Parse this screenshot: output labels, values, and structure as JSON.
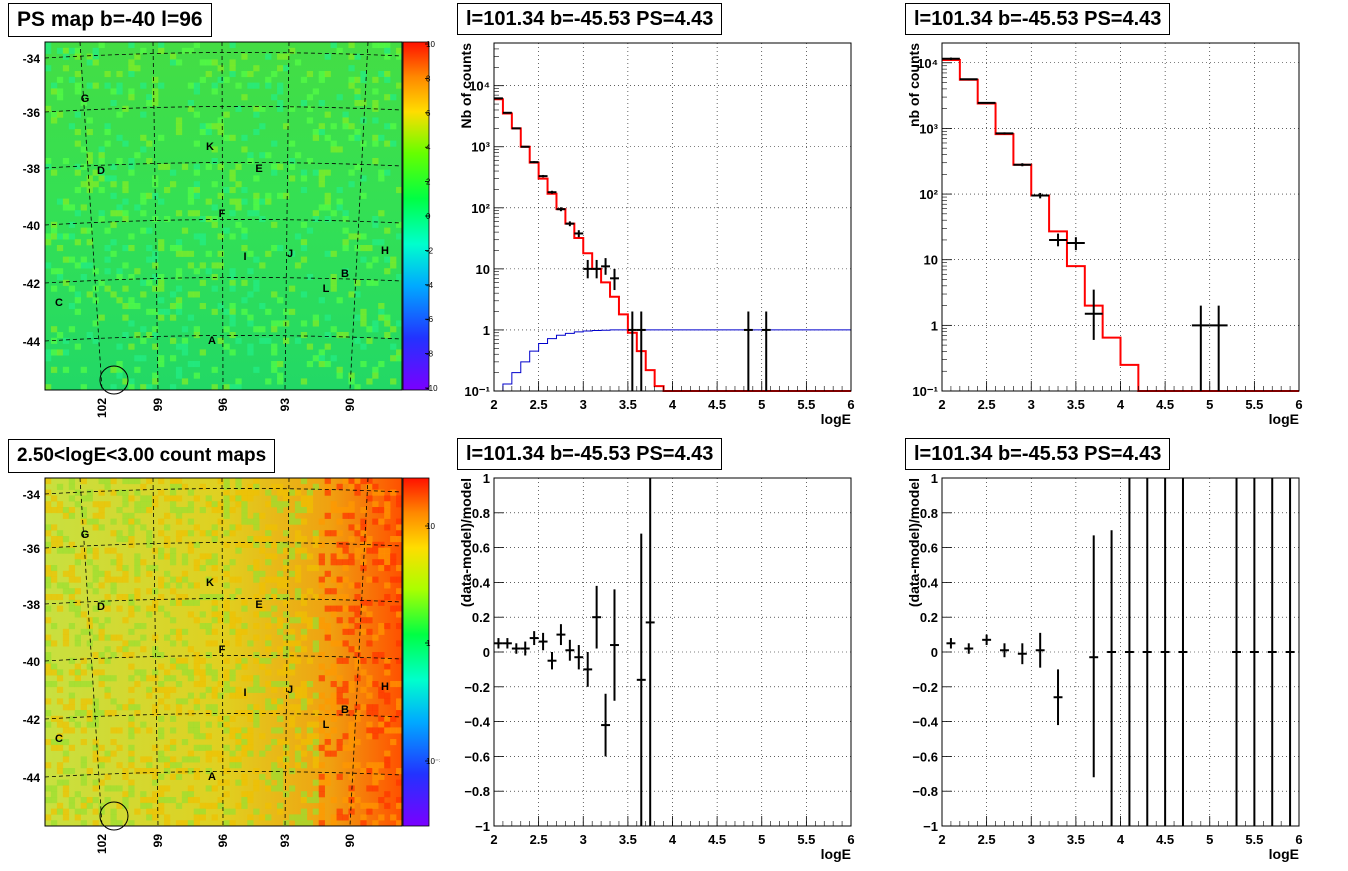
{
  "panels": {
    "ps_map": {
      "title": "PS map b=-40 l=96",
      "y_ticks": [
        "-34",
        "-36",
        "-38",
        "-40",
        "-42",
        "-44"
      ],
      "x_ticks": [
        "102",
        "99",
        "96",
        "93",
        "90"
      ],
      "colorbar_ticks": [
        "10",
        "8",
        "6",
        "4",
        "2",
        "0",
        "-2",
        "-4",
        "-6",
        "-8",
        "-10"
      ],
      "labels": [
        "G",
        "K",
        "D",
        "E",
        "F",
        "I",
        "J",
        "H",
        "B",
        "L",
        "C",
        "A"
      ]
    },
    "count_map": {
      "title": "2.50<logE<3.00 count maps",
      "y_ticks": [
        "-34",
        "-36",
        "-38",
        "-40",
        "-42",
        "-44"
      ],
      "x_ticks": [
        "102",
        "99",
        "96",
        "93",
        "90"
      ],
      "colorbar_ticks": [
        "10",
        "1",
        "10⁻¹"
      ],
      "labels": [
        "G",
        "K",
        "D",
        "E",
        "F",
        "I",
        "J",
        "H",
        "B",
        "L",
        "C",
        "A"
      ]
    },
    "spectrum_left": {
      "title": "l=101.34 b=-45.53 PS=4.43"
    },
    "spectrum_right": {
      "title": "l=101.34 b=-45.53 PS=4.43"
    },
    "resid_left": {
      "title": "l=101.34 b=-45.53 PS=4.43"
    },
    "resid_right": {
      "title": "l=101.34 b=-45.53 PS=4.43"
    },
    "colors": {
      "model": "#ff0000",
      "data": "#000000",
      "exposure": "#0000cc"
    }
  },
  "chart_data": [
    {
      "id": "spectrum_left",
      "type": "line",
      "title": "l=101.34 b=-45.53 PS=4.43",
      "xlabel": "logE",
      "ylabel": "Nb of counts",
      "xlim": [
        2,
        6
      ],
      "ylim": [
        0.1,
        50000
      ],
      "yscale": "log",
      "grid": true,
      "x_ticks": [
        "2",
        "2.5",
        "3",
        "3.5",
        "4",
        "4.5",
        "5",
        "5.5",
        "6"
      ],
      "y_ticks": [
        {
          "label": "10⁻¹",
          "value": 0.1
        },
        {
          "label": "1",
          "value": 1
        },
        {
          "label": "10",
          "value": 10
        },
        {
          "label": "10²",
          "value": 100
        },
        {
          "label": "10³",
          "value": 1000
        },
        {
          "label": "10⁴",
          "value": 10000
        }
      ],
      "model_steps": {
        "edges": [
          2,
          2.1,
          2.2,
          2.3,
          2.4,
          2.5,
          2.6,
          2.7,
          2.8,
          2.9,
          3,
          3.1,
          3.2,
          3.3,
          3.4,
          3.5,
          3.6,
          3.7,
          3.8,
          3.9,
          4,
          4.1,
          6
        ],
        "values": [
          6000,
          3500,
          2000,
          1000,
          550,
          300,
          170,
          95,
          55,
          32,
          18,
          10,
          6,
          3.5,
          1.8,
          0.9,
          0.45,
          0.22,
          0.12,
          0.1,
          0.1,
          0.1
        ]
      },
      "data_points": [
        {
          "x": 2.05,
          "y": 6200,
          "lo": 6000,
          "hi": 6400
        },
        {
          "x": 2.15,
          "y": 3600,
          "lo": 3500,
          "hi": 3700
        },
        {
          "x": 2.25,
          "y": 2000,
          "lo": 1950,
          "hi": 2050
        },
        {
          "x": 2.35,
          "y": 1000,
          "lo": 970,
          "hi": 1030
        },
        {
          "x": 2.45,
          "y": 560,
          "lo": 540,
          "hi": 580
        },
        {
          "x": 2.55,
          "y": 330,
          "lo": 315,
          "hi": 345
        },
        {
          "x": 2.65,
          "y": 180,
          "lo": 170,
          "hi": 190
        },
        {
          "x": 2.75,
          "y": 95,
          "lo": 88,
          "hi": 102
        },
        {
          "x": 2.85,
          "y": 55,
          "lo": 50,
          "hi": 60
        },
        {
          "x": 2.95,
          "y": 38,
          "lo": 33,
          "hi": 43
        },
        {
          "x": 3.05,
          "y": 10,
          "lo": 7,
          "hi": 14
        },
        {
          "x": 3.15,
          "y": 10,
          "lo": 7,
          "hi": 14
        },
        {
          "x": 3.25,
          "y": 11,
          "lo": 8,
          "hi": 15
        },
        {
          "x": 3.35,
          "y": 7,
          "lo": 4.5,
          "hi": 10
        },
        {
          "x": 3.55,
          "y": 1,
          "lo": 0.1,
          "hi": 2
        },
        {
          "x": 3.65,
          "y": 1,
          "lo": 0.1,
          "hi": 2
        },
        {
          "x": 4.85,
          "y": 1,
          "lo": 0.1,
          "hi": 2
        },
        {
          "x": 5.05,
          "y": 1,
          "lo": 0.1,
          "hi": 2
        }
      ],
      "exposure_steps": {
        "edges": [
          2,
          2.1,
          2.2,
          2.3,
          2.4,
          2.5,
          2.6,
          2.7,
          2.8,
          2.9,
          3,
          3.1,
          3.2,
          3.3,
          3.4,
          6
        ],
        "values": [
          0.1,
          0.13,
          0.2,
          0.3,
          0.45,
          0.6,
          0.72,
          0.82,
          0.88,
          0.93,
          0.96,
          0.98,
          0.99,
          1.0,
          1.0
        ]
      }
    },
    {
      "id": "spectrum_right",
      "type": "line",
      "title": "l=101.34 b=-45.53 PS=4.43",
      "xlabel": "logE",
      "ylabel": "nb of counts",
      "xlim": [
        2,
        6
      ],
      "ylim": [
        0.1,
        20000
      ],
      "yscale": "log",
      "grid": true,
      "x_ticks": [
        "2",
        "2.5",
        "3",
        "3.5",
        "4",
        "4.5",
        "5",
        "5.5",
        "6"
      ],
      "y_ticks": [
        {
          "label": "10⁻¹",
          "value": 0.1
        },
        {
          "label": "1",
          "value": 1
        },
        {
          "label": "10",
          "value": 10
        },
        {
          "label": "10²",
          "value": 100
        },
        {
          "label": "10³",
          "value": 1000
        },
        {
          "label": "10⁴",
          "value": 10000
        }
      ],
      "model_steps": {
        "edges": [
          2,
          2.2,
          2.4,
          2.6,
          2.8,
          3,
          3.2,
          3.4,
          3.6,
          3.8,
          4,
          4.2,
          6
        ],
        "values": [
          11000,
          5500,
          2400,
          820,
          280,
          95,
          27,
          8,
          2,
          0.65,
          0.25,
          0.1
        ]
      },
      "data_points": [
        {
          "x": 2.1,
          "y": 11500,
          "lo": 11000,
          "hi": 12000
        },
        {
          "x": 2.3,
          "y": 5600,
          "lo": 5450,
          "hi": 5750
        },
        {
          "x": 2.5,
          "y": 2450,
          "lo": 2380,
          "hi": 2520
        },
        {
          "x": 2.7,
          "y": 840,
          "lo": 810,
          "hi": 870
        },
        {
          "x": 2.9,
          "y": 280,
          "lo": 265,
          "hi": 295
        },
        {
          "x": 3.1,
          "y": 95,
          "lo": 86,
          "hi": 104
        },
        {
          "x": 3.3,
          "y": 20,
          "lo": 16,
          "hi": 25
        },
        {
          "x": 3.5,
          "y": 18,
          "lo": 14,
          "hi": 22
        },
        {
          "x": 3.7,
          "y": 1.5,
          "lo": 0.6,
          "hi": 3.5
        },
        {
          "x": 4.9,
          "y": 1,
          "lo": 0.1,
          "hi": 2
        },
        {
          "x": 5.1,
          "y": 1,
          "lo": 0.1,
          "hi": 2
        }
      ]
    },
    {
      "id": "resid_left",
      "type": "scatter",
      "title": "l=101.34 b=-45.53 PS=4.43",
      "xlabel": "logE",
      "ylabel": "(data-model)/model",
      "xlim": [
        2,
        6
      ],
      "ylim": [
        -1,
        1
      ],
      "grid": true,
      "x_ticks": [
        "2",
        "2.5",
        "3",
        "3.5",
        "4",
        "4.5",
        "5",
        "5.5",
        "6"
      ],
      "y_ticks": [
        "1",
        "0.8",
        "0.6",
        "0.4",
        "0.2",
        "0",
        "−0.2",
        "−0.4",
        "−0.6",
        "−0.8",
        "−1"
      ],
      "data_points": [
        {
          "x": 2.05,
          "y": 0.05,
          "lo": 0.02,
          "hi": 0.08
        },
        {
          "x": 2.15,
          "y": 0.05,
          "lo": 0.02,
          "hi": 0.08
        },
        {
          "x": 2.25,
          "y": 0.02,
          "lo": -0.01,
          "hi": 0.05
        },
        {
          "x": 2.35,
          "y": 0.02,
          "lo": -0.02,
          "hi": 0.06
        },
        {
          "x": 2.45,
          "y": 0.08,
          "lo": 0.04,
          "hi": 0.12
        },
        {
          "x": 2.55,
          "y": 0.06,
          "lo": 0.01,
          "hi": 0.11
        },
        {
          "x": 2.65,
          "y": -0.05,
          "lo": -0.1,
          "hi": 0.0
        },
        {
          "x": 2.75,
          "y": 0.1,
          "lo": 0.04,
          "hi": 0.16
        },
        {
          "x": 2.85,
          "y": 0.01,
          "lo": -0.05,
          "hi": 0.07
        },
        {
          "x": 2.95,
          "y": -0.03,
          "lo": -0.1,
          "hi": 0.04
        },
        {
          "x": 3.05,
          "y": -0.1,
          "lo": -0.2,
          "hi": 0.0
        },
        {
          "x": 3.15,
          "y": 0.2,
          "lo": 0.02,
          "hi": 0.38
        },
        {
          "x": 3.25,
          "y": -0.42,
          "lo": -0.6,
          "hi": -0.24
        },
        {
          "x": 3.35,
          "y": 0.04,
          "lo": -0.28,
          "hi": 0.36
        },
        {
          "x": 3.65,
          "y": -0.16,
          "lo": -1,
          "hi": 0.68
        },
        {
          "x": 3.75,
          "y": 0.17,
          "lo": -1,
          "hi": 1
        }
      ]
    },
    {
      "id": "resid_right",
      "type": "scatter",
      "title": "l=101.34 b=-45.53 PS=4.43",
      "xlabel": "logE",
      "ylabel": "(data-model)/model",
      "xlim": [
        2,
        6
      ],
      "ylim": [
        -1,
        1
      ],
      "grid": true,
      "x_ticks": [
        "2",
        "2.5",
        "3",
        "3.5",
        "4",
        "4.5",
        "5",
        "5.5",
        "6"
      ],
      "y_ticks": [
        "1",
        "0.8",
        "0.6",
        "0.4",
        "0.2",
        "0",
        "−0.2",
        "−0.4",
        "−0.6",
        "−0.8",
        "−1"
      ],
      "data_points": [
        {
          "x": 2.1,
          "y": 0.05,
          "lo": 0.02,
          "hi": 0.08
        },
        {
          "x": 2.3,
          "y": 0.02,
          "lo": -0.01,
          "hi": 0.05
        },
        {
          "x": 2.5,
          "y": 0.07,
          "lo": 0.04,
          "hi": 0.1
        },
        {
          "x": 2.7,
          "y": 0.01,
          "lo": -0.03,
          "hi": 0.05
        },
        {
          "x": 2.9,
          "y": -0.01,
          "lo": -0.07,
          "hi": 0.05
        },
        {
          "x": 3.1,
          "y": 0.01,
          "lo": -0.09,
          "hi": 0.11
        },
        {
          "x": 3.3,
          "y": -0.26,
          "lo": -0.42,
          "hi": -0.1
        },
        {
          "x": 3.7,
          "y": -0.03,
          "lo": -0.72,
          "hi": 0.67
        },
        {
          "x": 3.9,
          "y": 0.0,
          "lo": -1,
          "hi": 0.7
        },
        {
          "x": 4.1,
          "y": 0.0,
          "lo": -1,
          "hi": 1
        },
        {
          "x": 4.3,
          "y": 0.0,
          "lo": -1,
          "hi": 1
        },
        {
          "x": 4.5,
          "y": 0.0,
          "lo": -1,
          "hi": 1
        },
        {
          "x": 4.7,
          "y": 0.0,
          "lo": -1,
          "hi": 1
        },
        {
          "x": 5.3,
          "y": 0.0,
          "lo": -1,
          "hi": 1
        },
        {
          "x": 5.5,
          "y": 0.0,
          "lo": -1,
          "hi": 1
        },
        {
          "x": 5.7,
          "y": 0.0,
          "lo": -1,
          "hi": 1
        },
        {
          "x": 5.9,
          "y": 0.0,
          "lo": -1,
          "hi": 1
        }
      ]
    }
  ]
}
